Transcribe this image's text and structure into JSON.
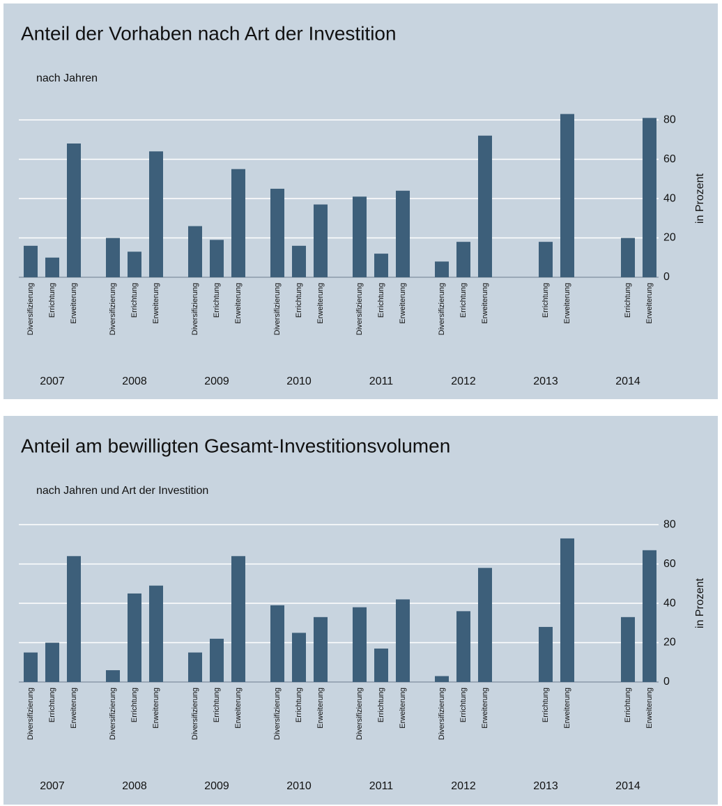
{
  "chart_data": [
    {
      "type": "bar",
      "title": "Anteil der Vorhaben nach Art der Investition",
      "subtitle": "nach Jahren",
      "ylabel": "in Prozent",
      "ylim": [
        0,
        85
      ],
      "yticks": [
        0,
        20,
        40,
        60,
        80
      ],
      "grid": true,
      "color": "#3d5f7a",
      "groups": [
        {
          "name": "2007",
          "categories": [
            "Diversifizierung",
            "Errichtung",
            "Erweiterung"
          ],
          "values": [
            16,
            10,
            68
          ]
        },
        {
          "name": "2008",
          "categories": [
            "Diversifizierung",
            "Errichtung",
            "Erweiterung"
          ],
          "values": [
            20,
            13,
            64
          ]
        },
        {
          "name": "2009",
          "categories": [
            "Diversifizierung",
            "Errichtung",
            "Erweiterung"
          ],
          "values": [
            26,
            19,
            55
          ]
        },
        {
          "name": "2010",
          "categories": [
            "Diversifizierung",
            "Errichtung",
            "Erweiterung"
          ],
          "values": [
            45,
            16,
            37
          ]
        },
        {
          "name": "2011",
          "categories": [
            "Diversifizierung",
            "Errichtung",
            "Erweiterung"
          ],
          "values": [
            41,
            12,
            44
          ]
        },
        {
          "name": "2012",
          "categories": [
            "Diversifizierung",
            "Errichtung",
            "Erweiterung"
          ],
          "values": [
            8,
            18,
            72
          ]
        },
        {
          "name": "2013",
          "categories": [
            "Errichtung",
            "Erweiterung"
          ],
          "values": [
            18,
            83
          ]
        },
        {
          "name": "2014",
          "categories": [
            "Errichtung",
            "Erweiterung"
          ],
          "values": [
            20,
            81
          ]
        }
      ]
    },
    {
      "type": "bar",
      "title": "Anteil am bewilligten Gesamt-Investitionsvolumen",
      "subtitle": "nach Jahren und Art der Investition",
      "ylabel": "in Prozent",
      "ylim": [
        0,
        85
      ],
      "yticks": [
        0,
        20,
        40,
        60,
        80
      ],
      "grid": true,
      "color": "#3d5f7a",
      "groups": [
        {
          "name": "2007",
          "categories": [
            "Diversifizierung",
            "Errichtung",
            "Erweiterung"
          ],
          "values": [
            15,
            20,
            64
          ]
        },
        {
          "name": "2008",
          "categories": [
            "Diversifizierung",
            "Errichtung",
            "Erweiterung"
          ],
          "values": [
            6,
            45,
            49
          ]
        },
        {
          "name": "2009",
          "categories": [
            "Diversifizierung",
            "Errichtung",
            "Erweiterung"
          ],
          "values": [
            15,
            22,
            64
          ]
        },
        {
          "name": "2010",
          "categories": [
            "Diversifizierung",
            "Errichtung",
            "Erweiterung"
          ],
          "values": [
            39,
            25,
            33
          ]
        },
        {
          "name": "2011",
          "categories": [
            "Diversifizierung",
            "Errichtung",
            "Erweiterung"
          ],
          "values": [
            38,
            17,
            42
          ]
        },
        {
          "name": "2012",
          "categories": [
            "Diversifizierung",
            "Errichtung",
            "Erweiterung"
          ],
          "values": [
            3,
            36,
            58
          ]
        },
        {
          "name": "2013",
          "categories": [
            "Errichtung",
            "Erweiterung"
          ],
          "values": [
            28,
            73
          ]
        },
        {
          "name": "2014",
          "categories": [
            "Errichtung",
            "Erweiterung"
          ],
          "values": [
            33,
            67
          ]
        }
      ]
    }
  ]
}
